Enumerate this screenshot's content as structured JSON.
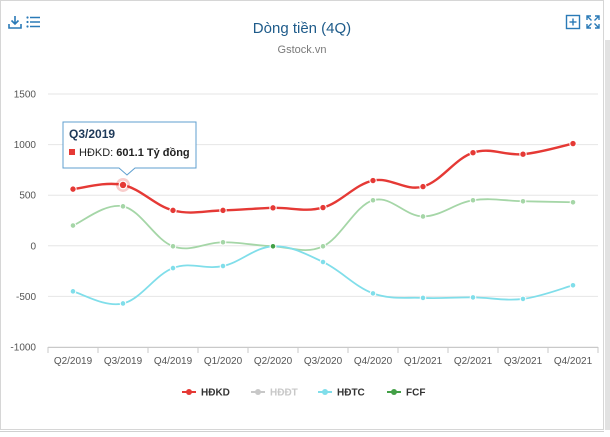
{
  "header": {
    "title": "Dòng tiền (4Q)",
    "subtitle": "Gstock.vn"
  },
  "toolbar": {
    "download_icon": "download-icon",
    "menu_icon": "list-menu-icon",
    "add_icon": "plus-square-icon",
    "fullscreen_icon": "expand-icon"
  },
  "colors": {
    "HĐKD": "#e53935",
    "HĐĐT": "#a5d6a7",
    "HĐTC": "#80deea",
    "FCF": "#43a047",
    "legend_hidden": "#c8c8c8"
  },
  "tooltip": {
    "title": "Q3/2019",
    "series": "HĐKD",
    "value": "601.1 Tỷ đồng"
  },
  "chart_data": {
    "type": "line",
    "title": "Dòng tiền (4Q)",
    "subtitle": "Gstock.vn",
    "categories": [
      "Q2/2019",
      "Q3/2019",
      "Q4/2019",
      "Q1/2020",
      "Q2/2020",
      "Q3/2020",
      "Q4/2020",
      "Q1/2021",
      "Q2/2021",
      "Q3/2021",
      "Q4/2021"
    ],
    "ylim": [
      -1000,
      1500
    ],
    "yticks": [
      -1000,
      -500,
      0,
      500,
      1000,
      1500
    ],
    "series": [
      {
        "name": "HĐKD",
        "values": [
          560,
          601.1,
          350,
          350,
          375,
          378,
          645,
          585,
          920,
          905,
          1010
        ],
        "visible": true
      },
      {
        "name": "HĐĐT",
        "values": [
          200,
          390,
          -5,
          35,
          -5,
          -5,
          450,
          290,
          450,
          440,
          430
        ],
        "visible": false
      },
      {
        "name": "HĐTC",
        "values": [
          -450,
          -570,
          -220,
          -200,
          -5,
          -160,
          -470,
          -515,
          -510,
          -525,
          -390
        ],
        "visible": true
      },
      {
        "name": "FCF",
        "values": [
          null,
          null,
          null,
          null,
          -5,
          null,
          null,
          null,
          null,
          null,
          null
        ],
        "visible": true
      }
    ],
    "legend": [
      "HĐKD",
      "HĐĐT",
      "HĐTC",
      "FCF"
    ],
    "legend_position": "bottom",
    "grid": true
  }
}
